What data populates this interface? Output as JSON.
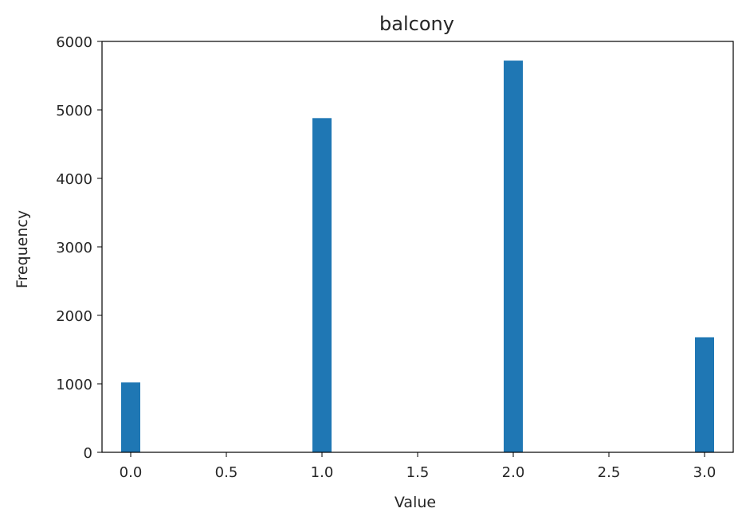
{
  "chart_data": {
    "type": "bar",
    "title": "balcony",
    "xlabel": "Value",
    "ylabel": "Frequency",
    "x": [
      0.0,
      1.0,
      2.0,
      3.0
    ],
    "values": [
      1020,
      4880,
      5720,
      1680
    ],
    "bar_width": 0.1,
    "xlim": [
      -0.15,
      3.15
    ],
    "ylim": [
      0,
      6000
    ],
    "xticks": [
      0.0,
      0.5,
      1.0,
      1.5,
      2.0,
      2.5,
      3.0
    ],
    "xtick_labels": [
      "0.0",
      "0.5",
      "1.0",
      "1.5",
      "2.0",
      "2.5",
      "3.0"
    ],
    "yticks": [
      0,
      1000,
      2000,
      3000,
      4000,
      5000,
      6000
    ],
    "ytick_labels": [
      "0",
      "1000",
      "2000",
      "3000",
      "4000",
      "5000",
      "6000"
    ],
    "bar_color": "#1f77b4",
    "grid": false,
    "legend": "none"
  }
}
